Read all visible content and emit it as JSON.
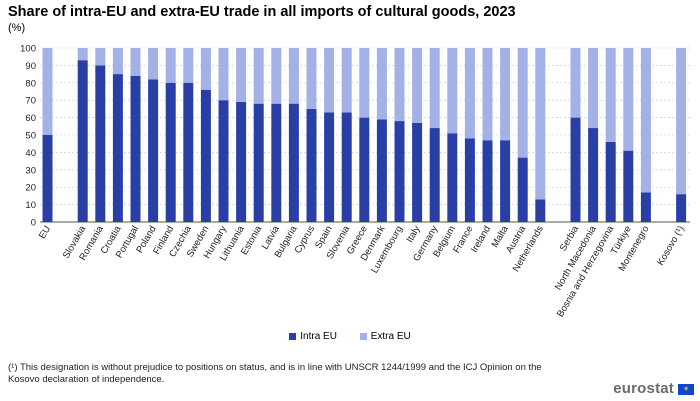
{
  "title": "Share of intra-EU and extra-EU trade in all imports of cultural goods, 2023",
  "unit": "(%)",
  "chart_data": {
    "type": "bar",
    "stacked": true,
    "categories": [
      "EU",
      "Slovakia",
      "Romania",
      "Croatia",
      "Portugal",
      "Poland",
      "Finland",
      "Czechia",
      "Sweden",
      "Hungary",
      "Lithuania",
      "Estonia",
      "Latvia",
      "Bulgaria",
      "Cyprus",
      "Spain",
      "Slovenia",
      "Greece",
      "Denmark",
      "Luxembourg",
      "Italy",
      "Germany",
      "Belgium",
      "France",
      "Ireland",
      "Malta",
      "Austria",
      "Netherlands",
      "Serbia",
      "North Macedonia",
      "Bosnia and Herzegovina",
      "Türkiye",
      "Montenegro",
      "Kosovo (¹)"
    ],
    "series": [
      {
        "name": "Intra EU",
        "color": "#2a3fa5",
        "values": [
          50,
          93,
          90,
          85,
          84,
          82,
          80,
          80,
          76,
          70,
          69,
          68,
          68,
          68,
          65,
          63,
          63,
          60,
          59,
          58,
          57,
          54,
          51,
          48,
          47,
          47,
          37,
          13,
          60,
          54,
          46,
          41,
          17,
          16
        ]
      },
      {
        "name": "Extra EU",
        "color": "#a3b1e6",
        "values": [
          50,
          7,
          10,
          15,
          16,
          18,
          20,
          20,
          24,
          30,
          31,
          32,
          32,
          32,
          35,
          37,
          37,
          40,
          41,
          42,
          43,
          46,
          49,
          52,
          53,
          53,
          63,
          87,
          40,
          46,
          54,
          59,
          83,
          84
        ]
      }
    ],
    "ylim": [
      0,
      100
    ],
    "yticks": [
      0,
      10,
      20,
      30,
      40,
      50,
      60,
      70,
      80,
      90,
      100
    ],
    "grid": true,
    "legend_position": "bottom"
  },
  "legend": {
    "intra_label": "Intra EU",
    "extra_label": "Extra EU"
  },
  "footnote": "(¹) This designation is without prejudice to positions on status, and is in line with UNSCR 1244/1999 and the ICJ Opinion on the Kosovo declaration of independence.",
  "logo": "eurostat",
  "colors": {
    "intra": "#2a3fa5",
    "extra": "#a3b1e6",
    "grid": "#c8c8c8"
  }
}
